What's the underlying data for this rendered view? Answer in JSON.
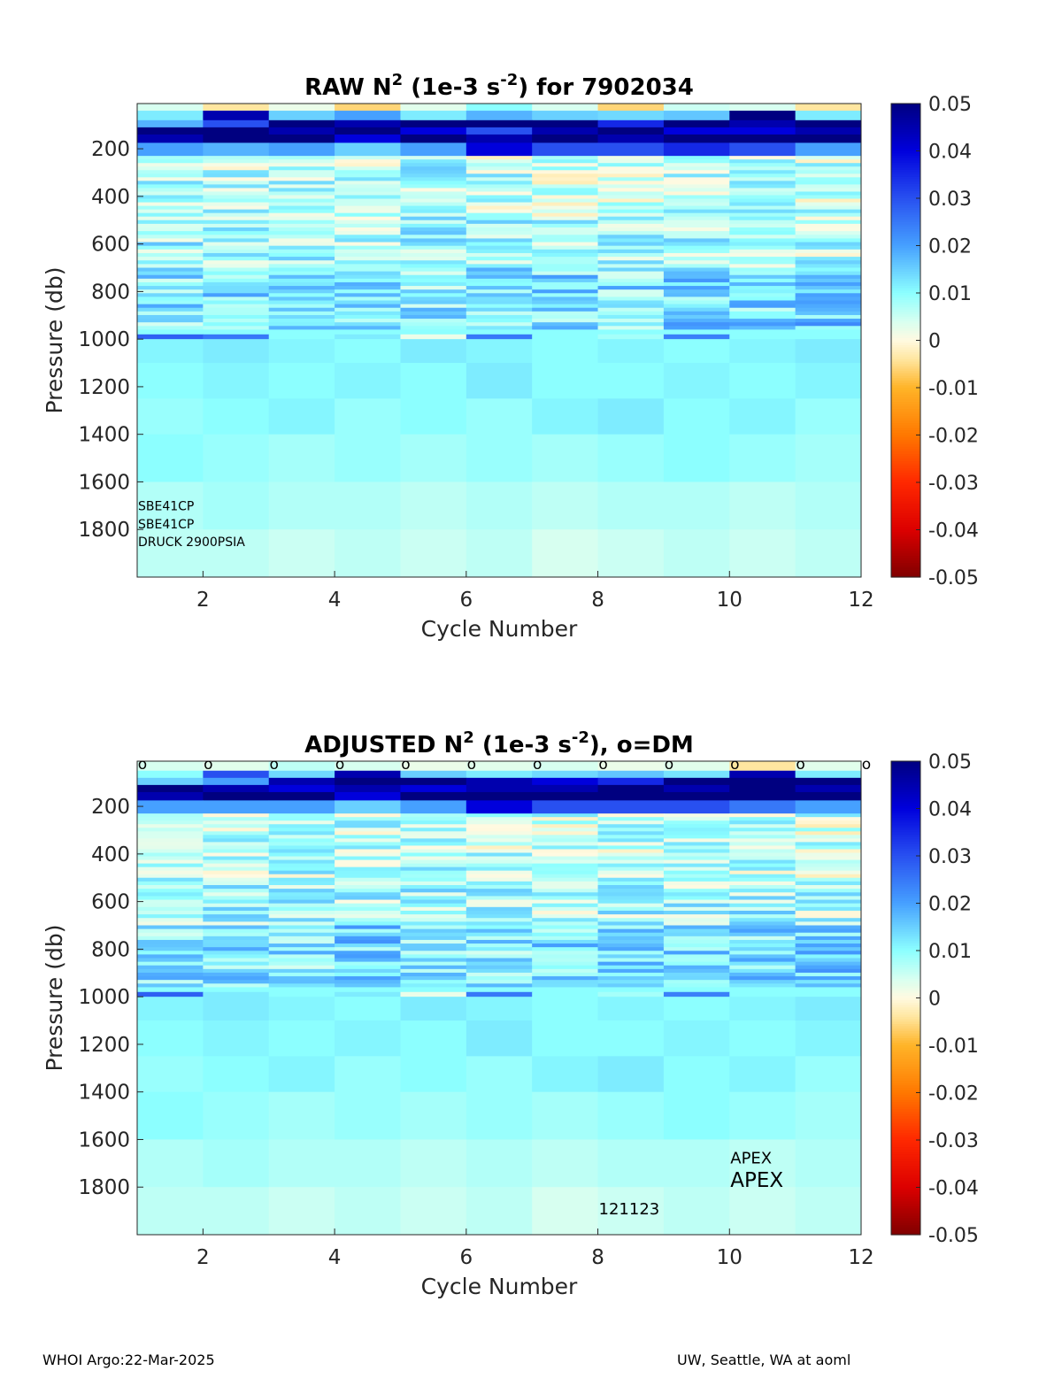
{
  "footer": {
    "left": "WHOI Argo:22-Mar-2025",
    "right": "UW, Seattle, WA at aoml"
  },
  "chart_data": [
    {
      "type": "heatmap",
      "title_parts": [
        "RAW N",
        "2",
        " (1e-3 s",
        "-2",
        ") for 7902034"
      ],
      "xlabel": "Cycle Number",
      "ylabel": "Pressure (db)",
      "xlim": [
        1,
        12
      ],
      "ylim": [
        2000,
        10
      ],
      "y_reversed": true,
      "xticks": [
        2,
        4,
        6,
        8,
        10,
        12
      ],
      "xtick_labels": [
        "2",
        "4",
        "6",
        "8",
        "10",
        "12"
      ],
      "yticks": [
        200,
        400,
        600,
        800,
        1000,
        1200,
        1400,
        1600,
        1800
      ],
      "ytick_labels": [
        "200",
        "400",
        "600",
        "800",
        "1000",
        "1200",
        "1400",
        "1600",
        "1800"
      ],
      "colorbar": {
        "min": -0.05,
        "max": 0.05,
        "colormap": "jet-white-center",
        "ticks": [
          0.05,
          0.04,
          0.03,
          0.02,
          0.01,
          0,
          -0.01,
          -0.02,
          -0.03,
          -0.04,
          -0.05
        ],
        "tick_labels": [
          "0.05",
          "0.04",
          "0.03",
          "0.02",
          "0.01",
          "0",
          "-0.01",
          "-0.02",
          "-0.03",
          "-0.04",
          "-0.05"
        ]
      },
      "cycles": [
        1,
        2,
        3,
        4,
        5,
        6,
        7,
        8,
        9,
        10,
        11
      ],
      "layers": [
        {
          "p": [
            10,
            40
          ],
          "v": [
            0.004,
            -0.004,
            0.002,
            -0.006,
            0.003,
            0.01,
            0.004,
            -0.006,
            0.005,
            0.004,
            -0.004
          ]
        },
        {
          "p": [
            40,
            80
          ],
          "v": [
            0.012,
            0.045,
            0.015,
            0.02,
            0.012,
            0.018,
            0.015,
            0.014,
            0.016,
            0.05,
            0.012
          ]
        },
        {
          "p": [
            80,
            110
          ],
          "v": [
            0.018,
            0.03,
            0.05,
            0.045,
            0.05,
            0.05,
            0.05,
            0.035,
            0.05,
            0.045,
            0.05
          ]
        },
        {
          "p": [
            110,
            140
          ],
          "v": [
            0.05,
            0.05,
            0.045,
            0.05,
            0.04,
            0.03,
            0.045,
            0.05,
            0.04,
            0.04,
            0.045
          ]
        },
        {
          "p": [
            140,
            175
          ],
          "v": [
            0.045,
            0.05,
            0.05,
            0.04,
            0.05,
            0.045,
            0.05,
            0.045,
            0.05,
            0.05,
            0.05
          ]
        },
        {
          "p": [
            175,
            230
          ],
          "v": [
            0.02,
            0.018,
            0.02,
            0.015,
            0.02,
            0.04,
            0.03,
            0.03,
            0.035,
            0.03,
            0.02
          ]
        },
        {
          "p": [
            230,
            500
          ],
          "v": [
            0.008,
            0.006,
            0.007,
            0.006,
            0.008,
            0.006,
            0.005,
            0.006,
            0.007,
            0.006,
            0.005
          ]
        },
        {
          "p": [
            500,
            700
          ],
          "v": [
            0.009,
            0.008,
            0.009,
            0.008,
            0.009,
            0.008,
            0.007,
            0.008,
            0.008,
            0.009,
            0.007
          ]
        },
        {
          "p": [
            700,
            960
          ],
          "v": [
            0.012,
            0.013,
            0.012,
            0.014,
            0.011,
            0.012,
            0.013,
            0.012,
            0.014,
            0.013,
            0.015
          ]
        },
        {
          "p": [
            960,
            980
          ],
          "v": [
            0.01,
            0.01,
            0.01,
            0.01,
            0.01,
            0.01,
            0.01,
            0.01,
            0.01,
            0.01,
            0.01
          ]
        },
        {
          "p": [
            980,
            1000
          ],
          "v": [
            0.028,
            0.025,
            0.01,
            0.012,
            0.002,
            0.025,
            0.01,
            0.008,
            0.024,
            0.01,
            0.01
          ]
        },
        {
          "p": [
            1000,
            1100
          ],
          "v": [
            0.011,
            0.012,
            0.011,
            0.01,
            0.012,
            0.011,
            0.01,
            0.011,
            0.01,
            0.011,
            0.012
          ]
        },
        {
          "p": [
            1100,
            1250
          ],
          "v": [
            0.01,
            0.011,
            0.01,
            0.011,
            0.01,
            0.012,
            0.01,
            0.01,
            0.011,
            0.01,
            0.011
          ]
        },
        {
          "p": [
            1250,
            1400
          ],
          "v": [
            0.009,
            0.01,
            0.011,
            0.009,
            0.01,
            0.009,
            0.011,
            0.012,
            0.01,
            0.011,
            0.009
          ]
        },
        {
          "p": [
            1400,
            1600
          ],
          "v": [
            0.01,
            0.009,
            0.008,
            0.009,
            0.008,
            0.009,
            0.008,
            0.009,
            0.01,
            0.009,
            0.008
          ]
        },
        {
          "p": [
            1600,
            1800
          ],
          "v": [
            0.007,
            0.008,
            0.007,
            0.007,
            0.006,
            0.007,
            0.006,
            0.007,
            0.007,
            0.006,
            0.007
          ]
        },
        {
          "p": [
            1800,
            2000
          ],
          "v": [
            0.006,
            0.006,
            0.005,
            0.006,
            0.005,
            0.006,
            0.004,
            0.005,
            0.006,
            0.005,
            0.006
          ]
        }
      ],
      "annotations": [
        {
          "text": "SBE41CP",
          "x": 1,
          "y": 1720,
          "size": 14
        },
        {
          "text": "SBE41CP",
          "x": 1,
          "y": 1795,
          "size": 14
        },
        {
          "text": "DRUCK 2900PSIA",
          "x": 1,
          "y": 1870,
          "size": 14
        }
      ],
      "dm_markers": []
    },
    {
      "type": "heatmap",
      "title_parts": [
        "ADJUSTED N",
        "2",
        " (1e-3 s",
        "-2",
        "), o=DM"
      ],
      "xlabel": "Cycle Number",
      "ylabel": "Pressure (db)",
      "xlim": [
        1,
        12
      ],
      "ylim": [
        2000,
        10
      ],
      "y_reversed": true,
      "xticks": [
        2,
        4,
        6,
        8,
        10,
        12
      ],
      "xtick_labels": [
        "2",
        "4",
        "6",
        "8",
        "10",
        "12"
      ],
      "yticks": [
        200,
        400,
        600,
        800,
        1000,
        1200,
        1400,
        1600,
        1800
      ],
      "ytick_labels": [
        "200",
        "400",
        "600",
        "800",
        "1000",
        "1200",
        "1400",
        "1600",
        "1800"
      ],
      "colorbar": {
        "min": -0.05,
        "max": 0.05,
        "colormap": "jet-white-center",
        "ticks": [
          0.05,
          0.04,
          0.03,
          0.02,
          0.01,
          0,
          -0.01,
          -0.02,
          -0.03,
          -0.04,
          -0.05
        ],
        "tick_labels": [
          "0.05",
          "0.04",
          "0.03",
          "0.02",
          "0.01",
          "0",
          "-0.01",
          "-0.02",
          "-0.03",
          "-0.04",
          "-0.05"
        ]
      },
      "cycles": [
        1,
        2,
        3,
        4,
        5,
        6,
        7,
        8,
        9,
        10,
        11
      ],
      "layers": [
        {
          "p": [
            10,
            50
          ],
          "v": [
            0.004,
            0.003,
            0.006,
            0.004,
            0.002,
            0.003,
            0.004,
            0.002,
            0.003,
            -0.004,
            0.003
          ]
        },
        {
          "p": [
            50,
            80
          ],
          "v": [
            0.01,
            0.03,
            0.014,
            0.045,
            0.015,
            0.012,
            0.014,
            0.016,
            0.013,
            0.045,
            0.012
          ]
        },
        {
          "p": [
            80,
            110
          ],
          "v": [
            0.015,
            0.02,
            0.045,
            0.05,
            0.05,
            0.045,
            0.04,
            0.035,
            0.05,
            0.05,
            0.05
          ]
        },
        {
          "p": [
            110,
            140
          ],
          "v": [
            0.05,
            0.045,
            0.04,
            0.045,
            0.04,
            0.045,
            0.045,
            0.05,
            0.045,
            0.05,
            0.045
          ]
        },
        {
          "p": [
            140,
            175
          ],
          "v": [
            0.045,
            0.05,
            0.05,
            0.04,
            0.05,
            0.05,
            0.05,
            0.05,
            0.05,
            0.05,
            0.05
          ]
        },
        {
          "p": [
            175,
            230
          ],
          "v": [
            0.02,
            0.02,
            0.02,
            0.015,
            0.02,
            0.04,
            0.03,
            0.03,
            0.03,
            0.025,
            0.02
          ]
        },
        {
          "p": [
            230,
            500
          ],
          "v": [
            0.008,
            0.006,
            0.007,
            0.006,
            0.008,
            0.006,
            0.005,
            0.006,
            0.007,
            0.006,
            0.005
          ]
        },
        {
          "p": [
            500,
            700
          ],
          "v": [
            0.009,
            0.008,
            0.009,
            0.008,
            0.009,
            0.008,
            0.007,
            0.008,
            0.008,
            0.009,
            0.007
          ]
        },
        {
          "p": [
            700,
            960
          ],
          "v": [
            0.012,
            0.013,
            0.012,
            0.014,
            0.011,
            0.012,
            0.013,
            0.012,
            0.014,
            0.013,
            0.015
          ]
        },
        {
          "p": [
            960,
            980
          ],
          "v": [
            0.01,
            0.01,
            0.01,
            0.01,
            0.01,
            0.01,
            0.01,
            0.01,
            0.01,
            0.01,
            0.01
          ]
        },
        {
          "p": [
            980,
            1000
          ],
          "v": [
            0.028,
            0.012,
            0.01,
            0.012,
            0.002,
            0.025,
            0.01,
            0.008,
            0.024,
            0.01,
            0.01
          ]
        },
        {
          "p": [
            1000,
            1100
          ],
          "v": [
            0.011,
            0.012,
            0.011,
            0.01,
            0.012,
            0.011,
            0.01,
            0.011,
            0.01,
            0.011,
            0.012
          ]
        },
        {
          "p": [
            1100,
            1250
          ],
          "v": [
            0.01,
            0.011,
            0.01,
            0.011,
            0.01,
            0.012,
            0.01,
            0.01,
            0.011,
            0.01,
            0.011
          ]
        },
        {
          "p": [
            1250,
            1400
          ],
          "v": [
            0.009,
            0.01,
            0.011,
            0.009,
            0.01,
            0.009,
            0.011,
            0.012,
            0.01,
            0.011,
            0.009
          ]
        },
        {
          "p": [
            1400,
            1600
          ],
          "v": [
            0.01,
            0.009,
            0.008,
            0.009,
            0.008,
            0.009,
            0.008,
            0.009,
            0.01,
            0.009,
            0.008
          ]
        },
        {
          "p": [
            1600,
            1800
          ],
          "v": [
            0.007,
            0.008,
            0.007,
            0.007,
            0.006,
            0.007,
            0.006,
            0.007,
            0.007,
            0.006,
            0.007
          ]
        },
        {
          "p": [
            1800,
            2000
          ],
          "v": [
            0.006,
            0.006,
            0.005,
            0.006,
            0.005,
            0.006,
            0.004,
            0.005,
            0.006,
            0.005,
            0.006
          ]
        }
      ],
      "annotations": [
        {
          "text": "APEX",
          "x": 10,
          "y": 1700,
          "size": 18
        },
        {
          "text": "APEX",
          "x": 10,
          "y": 1800,
          "size": 23
        },
        {
          "text": "121123",
          "x": 8,
          "y": 1915,
          "size": 18
        }
      ],
      "dm_markers": [
        {
          "x": 1,
          "label": "o"
        },
        {
          "x": 2,
          "label": "o"
        },
        {
          "x": 3,
          "label": "o"
        },
        {
          "x": 4,
          "label": "o"
        },
        {
          "x": 5,
          "label": "o"
        },
        {
          "x": 6,
          "label": "o"
        },
        {
          "x": 7,
          "label": "o"
        },
        {
          "x": 8,
          "label": "o"
        },
        {
          "x": 9,
          "label": "o"
        },
        {
          "x": 10,
          "label": "o"
        },
        {
          "x": 11,
          "label": "o"
        },
        {
          "x": 12,
          "label": "o"
        }
      ]
    }
  ]
}
